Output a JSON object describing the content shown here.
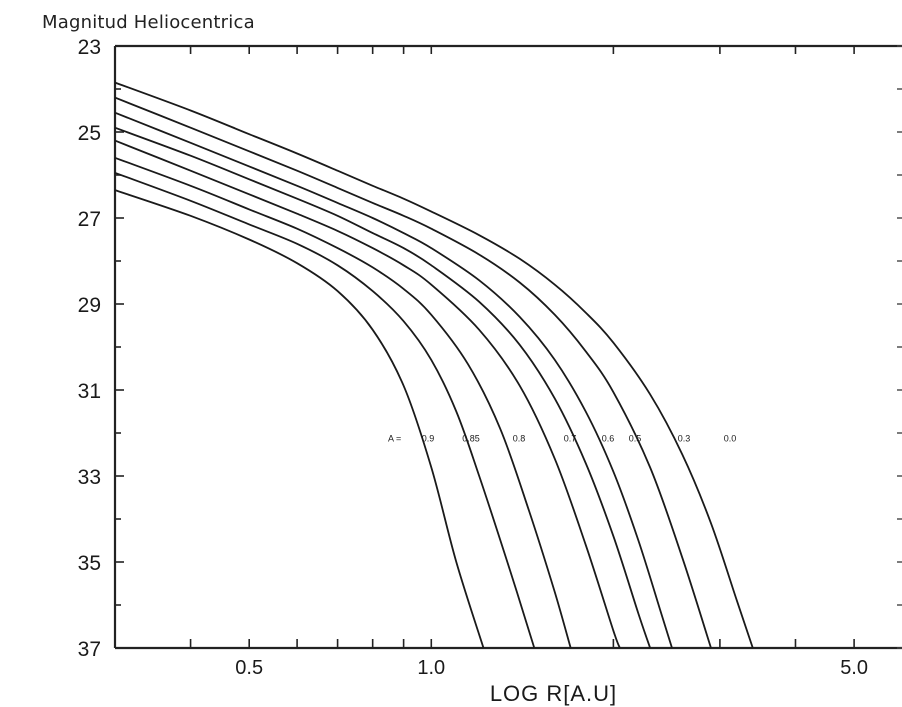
{
  "chart_data": {
    "type": "line",
    "ylabel": "Magnitud Heliocentrica",
    "xlabel": "LOG R[A.U]",
    "x_scale": "log",
    "y_inverted": true,
    "xlim": [
      0.3,
      6.0
    ],
    "ylim": [
      23,
      37
    ],
    "y_ticks": [
      "23",
      "25",
      "27",
      "29",
      "31",
      "33",
      "35",
      "37"
    ],
    "x_ticks": [
      "0.5",
      "1.0",
      "5.0"
    ],
    "grid": false,
    "annotation_prefix": "A = ",
    "series": [
      {
        "name": "0.9",
        "label": "0.9",
        "points": [
          [
            0.3,
            26.35
          ],
          [
            0.4,
            26.95
          ],
          [
            0.5,
            27.5
          ],
          [
            0.6,
            28.05
          ],
          [
            0.7,
            28.7
          ],
          [
            0.8,
            29.6
          ],
          [
            0.9,
            30.9
          ],
          [
            1.0,
            32.8
          ],
          [
            1.1,
            35.0
          ],
          [
            1.22,
            37.0
          ]
        ]
      },
      {
        "name": "0.85",
        "label": "0.85",
        "points": [
          [
            0.3,
            25.95
          ],
          [
            0.4,
            26.6
          ],
          [
            0.5,
            27.15
          ],
          [
            0.6,
            27.6
          ],
          [
            0.7,
            28.1
          ],
          [
            0.8,
            28.7
          ],
          [
            0.9,
            29.4
          ],
          [
            1.0,
            30.3
          ],
          [
            1.1,
            31.5
          ],
          [
            1.2,
            33.0
          ],
          [
            1.35,
            35.2
          ],
          [
            1.48,
            37.0
          ]
        ]
      },
      {
        "name": "0.8",
        "label": "0.8",
        "points": [
          [
            0.3,
            25.6
          ],
          [
            0.4,
            26.25
          ],
          [
            0.5,
            26.8
          ],
          [
            0.6,
            27.25
          ],
          [
            0.7,
            27.7
          ],
          [
            0.8,
            28.15
          ],
          [
            0.9,
            28.65
          ],
          [
            1.0,
            29.25
          ],
          [
            1.15,
            30.4
          ],
          [
            1.3,
            31.9
          ],
          [
            1.45,
            33.8
          ],
          [
            1.6,
            35.7
          ],
          [
            1.7,
            37.0
          ]
        ]
      },
      {
        "name": "0.7",
        "label": "0.7",
        "points": [
          [
            0.3,
            25.2
          ],
          [
            0.4,
            25.9
          ],
          [
            0.5,
            26.45
          ],
          [
            0.6,
            26.9
          ],
          [
            0.7,
            27.3
          ],
          [
            0.8,
            27.7
          ],
          [
            0.9,
            28.1
          ],
          [
            1.0,
            28.55
          ],
          [
            1.2,
            29.6
          ],
          [
            1.4,
            30.9
          ],
          [
            1.6,
            32.6
          ],
          [
            1.8,
            34.6
          ],
          [
            2.0,
            36.6
          ],
          [
            2.05,
            37.0
          ]
        ]
      },
      {
        "name": "0.6",
        "label": "0.6",
        "points": [
          [
            0.3,
            24.9
          ],
          [
            0.4,
            25.55
          ],
          [
            0.5,
            26.1
          ],
          [
            0.6,
            26.55
          ],
          [
            0.7,
            26.95
          ],
          [
            0.8,
            27.35
          ],
          [
            0.9,
            27.7
          ],
          [
            1.0,
            28.1
          ],
          [
            1.2,
            28.95
          ],
          [
            1.4,
            29.95
          ],
          [
            1.6,
            31.2
          ],
          [
            1.8,
            32.7
          ],
          [
            2.0,
            34.4
          ],
          [
            2.2,
            36.2
          ],
          [
            2.3,
            37.0
          ]
        ]
      },
      {
        "name": "0.5",
        "label": "0.5",
        "points": [
          [
            0.3,
            24.55
          ],
          [
            0.4,
            25.25
          ],
          [
            0.5,
            25.8
          ],
          [
            0.6,
            26.25
          ],
          [
            0.7,
            26.65
          ],
          [
            0.8,
            27.0
          ],
          [
            0.9,
            27.35
          ],
          [
            1.0,
            27.7
          ],
          [
            1.2,
            28.45
          ],
          [
            1.4,
            29.3
          ],
          [
            1.6,
            30.3
          ],
          [
            1.8,
            31.5
          ],
          [
            2.0,
            32.9
          ],
          [
            2.2,
            34.5
          ],
          [
            2.4,
            36.2
          ],
          [
            2.5,
            37.0
          ]
        ]
      },
      {
        "name": "0.3",
        "label": "0.3",
        "points": [
          [
            0.3,
            24.2
          ],
          [
            0.4,
            24.9
          ],
          [
            0.5,
            25.45
          ],
          [
            0.6,
            25.9
          ],
          [
            0.7,
            26.3
          ],
          [
            0.8,
            26.65
          ],
          [
            0.9,
            26.95
          ],
          [
            1.0,
            27.25
          ],
          [
            1.2,
            27.85
          ],
          [
            1.4,
            28.5
          ],
          [
            1.6,
            29.25
          ],
          [
            1.8,
            30.1
          ],
          [
            2.0,
            31.05
          ],
          [
            2.3,
            32.8
          ],
          [
            2.6,
            34.9
          ],
          [
            2.9,
            37.0
          ]
        ]
      },
      {
        "name": "0.0",
        "label": "0.0",
        "points": [
          [
            0.3,
            23.85
          ],
          [
            0.4,
            24.5
          ],
          [
            0.5,
            25.05
          ],
          [
            0.6,
            25.5
          ],
          [
            0.7,
            25.9
          ],
          [
            0.8,
            26.25
          ],
          [
            0.9,
            26.55
          ],
          [
            1.0,
            26.85
          ],
          [
            1.2,
            27.4
          ],
          [
            1.4,
            27.95
          ],
          [
            1.6,
            28.55
          ],
          [
            1.8,
            29.2
          ],
          [
            2.0,
            29.9
          ],
          [
            2.3,
            31.1
          ],
          [
            2.6,
            32.5
          ],
          [
            2.9,
            34.1
          ],
          [
            3.2,
            35.9
          ],
          [
            3.4,
            37.0
          ]
        ]
      }
    ]
  }
}
